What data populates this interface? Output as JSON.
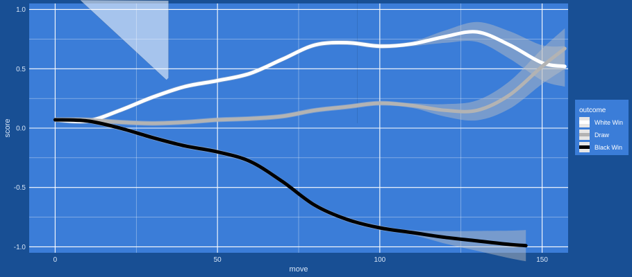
{
  "chart_data": {
    "type": "scatter",
    "title": "",
    "xlabel": "move",
    "ylabel": "score",
    "xlim": [
      -8,
      158
    ],
    "ylim": [
      -1.05,
      1.05
    ],
    "x_ticks": [
      0,
      50,
      100,
      150
    ],
    "x_tick_labels": [
      "0",
      "50",
      "100",
      "150"
    ],
    "y_ticks": [
      -1,
      -0.5,
      0,
      0.5,
      1
    ],
    "y_tick_labels": [
      "-1.0",
      "-0.5",
      "0.0",
      "0.5",
      "1.0"
    ],
    "grid": true,
    "legend": {
      "title": "outcome",
      "placement": "right",
      "entries": [
        {
          "label": "White Win",
          "color": "#ffffff"
        },
        {
          "label": "Draw",
          "color": "#b3b3b3"
        },
        {
          "label": "Black Win",
          "color": "#000000"
        }
      ]
    },
    "colors": {
      "page_background": "#184f94",
      "panel_background": "#3b7dd8",
      "grid": "#ffffff"
    },
    "series": [
      {
        "name": "White Win",
        "color": "#ffffff",
        "marker": "triangle-up",
        "smooth": {
          "x": [
            0,
            10,
            20,
            30,
            40,
            50,
            60,
            70,
            80,
            90,
            100,
            110,
            120,
            130,
            140,
            150,
            157
          ],
          "y": [
            0.07,
            0.06,
            0.15,
            0.26,
            0.35,
            0.4,
            0.46,
            0.58,
            0.7,
            0.72,
            0.69,
            0.71,
            0.77,
            0.81,
            0.7,
            0.55,
            0.52
          ]
        }
      },
      {
        "name": "Draw",
        "color": "#b3b3b3",
        "marker": "diamond",
        "smooth": {
          "x": [
            0,
            10,
            20,
            30,
            40,
            50,
            60,
            70,
            80,
            90,
            100,
            110,
            120,
            130,
            140,
            150,
            157
          ],
          "y": [
            0.07,
            0.07,
            0.05,
            0.04,
            0.05,
            0.07,
            0.08,
            0.1,
            0.15,
            0.18,
            0.21,
            0.19,
            0.15,
            0.15,
            0.28,
            0.52,
            0.67
          ]
        }
      },
      {
        "name": "Black Win",
        "color": "#000000",
        "marker": "triangle-down",
        "smooth": {
          "x": [
            0,
            10,
            20,
            30,
            40,
            50,
            60,
            70,
            80,
            90,
            100,
            110,
            120,
            130,
            140,
            145
          ],
          "y": [
            0.07,
            0.06,
            0.0,
            -0.08,
            -0.15,
            -0.2,
            -0.28,
            -0.45,
            -0.65,
            -0.77,
            -0.84,
            -0.88,
            -0.92,
            -0.95,
            -0.98,
            -0.99
          ]
        }
      }
    ]
  }
}
